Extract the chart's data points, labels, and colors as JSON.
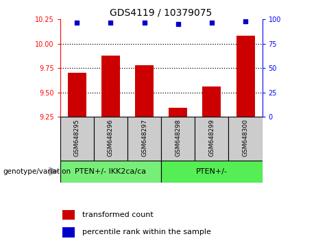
{
  "title": "GDS4119 / 10379075",
  "samples": [
    "GSM648295",
    "GSM648296",
    "GSM648297",
    "GSM648298",
    "GSM648299",
    "GSM648300"
  ],
  "bar_values": [
    9.7,
    9.88,
    9.78,
    9.34,
    9.56,
    10.08
  ],
  "percentile_values": [
    97,
    97,
    97,
    95,
    97,
    98
  ],
  "bar_color": "#cc0000",
  "dot_color": "#0000cc",
  "ylim_left": [
    9.25,
    10.25
  ],
  "yticks_left": [
    9.25,
    9.5,
    9.75,
    10.0,
    10.25
  ],
  "ylim_right": [
    0,
    100
  ],
  "yticks_right": [
    0,
    25,
    50,
    75,
    100
  ],
  "group1_label": "PTEN+/- IKK2ca/ca",
  "group2_label": "PTEN+/-",
  "group1_indices": [
    0,
    1,
    2
  ],
  "group2_indices": [
    3,
    4,
    5
  ],
  "group_label_prefix": "genotype/variation",
  "legend_bar_label": "transformed count",
  "legend_dot_label": "percentile rank within the sample",
  "group1_color": "#77ee77",
  "group2_color": "#55ee55",
  "ticklabel_area_color": "#cccccc",
  "bar_bottom": 9.25,
  "bg_color": "#ffffff"
}
